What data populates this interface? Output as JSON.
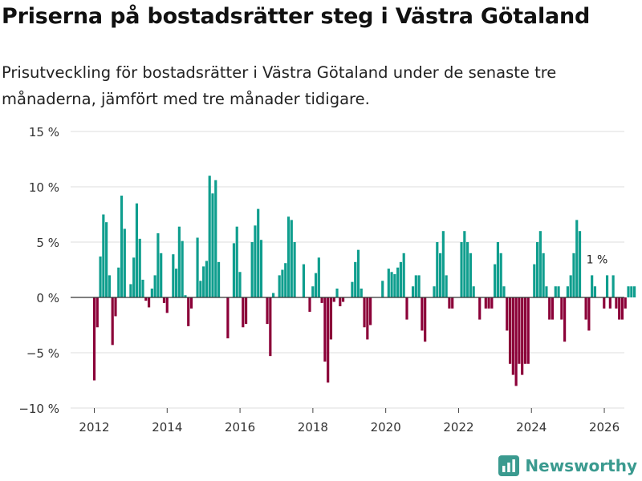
{
  "title": "Priserna på bostadsrätter steg i Västra Götaland",
  "subtitle": "Prisutveckling för bostadsrätter i Västra Götaland under de senaste tre månaderna, jämfört med tre månader tidigare.",
  "brand": "Newsworthy",
  "colors": {
    "positive": "#0f9e8e",
    "negative": "#8b0038",
    "grid": "#dddddd",
    "zero": "#333333",
    "brand": "#3a9a8f"
  },
  "chart_data": {
    "type": "bar",
    "x_start": 2012.0,
    "step": 0.0833,
    "xlim": [
      2011.35,
      2026.55
    ],
    "ylim": [
      -10,
      15
    ],
    "y_ticks": [
      -10,
      -5,
      0,
      5,
      10,
      15
    ],
    "y_tick_labels": [
      "−10 %",
      "−5 %",
      "0 %",
      "5 %",
      "10 %",
      "15 %"
    ],
    "x_ticks": [
      2012,
      2014,
      2016,
      2018,
      2020,
      2022,
      2024,
      2026
    ],
    "x_tick_labels": [
      "2012",
      "2014",
      "2016",
      "2018",
      "2020",
      "2022",
      "2024",
      "2026"
    ],
    "ylabel": "",
    "xlabel": "",
    "values": [
      -7.5,
      -2.7,
      3.7,
      7.5,
      6.8,
      2.0,
      -4.3,
      -1.7,
      2.7,
      9.2,
      6.2,
      0.0,
      1.2,
      3.6,
      8.5,
      5.3,
      1.6,
      -0.3,
      -0.9,
      0.8,
      2.0,
      5.8,
      4.0,
      -0.5,
      -1.4,
      0.0,
      3.9,
      2.6,
      6.4,
      5.1,
      0.2,
      -2.6,
      -1.0,
      0.0,
      5.4,
      1.5,
      2.8,
      3.3,
      11.0,
      9.4,
      10.6,
      3.2,
      0.0,
      0.0,
      -3.7,
      0.0,
      4.9,
      6.4,
      2.3,
      -2.7,
      -2.4,
      0.0,
      5.0,
      6.5,
      8.0,
      5.2,
      0.0,
      -2.4,
      -5.3,
      0.4,
      0.0,
      2.0,
      2.5,
      3.1,
      7.3,
      7.0,
      5.0,
      0.0,
      0.0,
      3.0,
      0.0,
      -1.3,
      1.0,
      2.2,
      3.6,
      -0.5,
      -5.8,
      -7.7,
      -3.8,
      -0.4,
      0.8,
      -0.8,
      -0.4,
      0.0,
      0.0,
      1.4,
      3.2,
      4.3,
      0.8,
      -2.7,
      -3.8,
      -2.5,
      0.0,
      0.0,
      0.0,
      1.5,
      0.0,
      2.6,
      2.3,
      2.1,
      2.7,
      3.2,
      4.0,
      -2.0,
      0.0,
      1.0,
      2.0,
      2.0,
      -3.0,
      -4.0,
      0.0,
      0.0,
      1.0,
      5.0,
      4.0,
      6.0,
      2.0,
      -1.0,
      -1.0,
      0.0,
      0.0,
      5.0,
      6.0,
      5.0,
      4.0,
      1.0,
      0.0,
      -2.0,
      0.0,
      -1.0,
      -1.0,
      -1.0,
      3.0,
      5.0,
      4.0,
      1.0,
      -3.0,
      -6.0,
      -7.0,
      -8.0,
      -6.0,
      -7.0,
      -6.0,
      -6.0,
      0.0,
      3.0,
      5.0,
      6.0,
      4.0,
      1.0,
      -2.0,
      -2.0,
      1.0,
      1.0,
      -2.0,
      -4.0,
      1.0,
      2.0,
      4.0,
      7.0,
      6.0,
      0.0,
      -2.0,
      -3.0,
      2.0,
      1.0,
      0.0,
      0.0,
      -1.0,
      2.0,
      -1.0,
      2.0,
      -1.0,
      -2.0,
      -2.0,
      -1.0,
      1.0,
      1.0,
      1.0
    ],
    "annotations": [
      {
        "text": "1 %",
        "x": 2025.8,
        "y": 2.5
      }
    ]
  }
}
